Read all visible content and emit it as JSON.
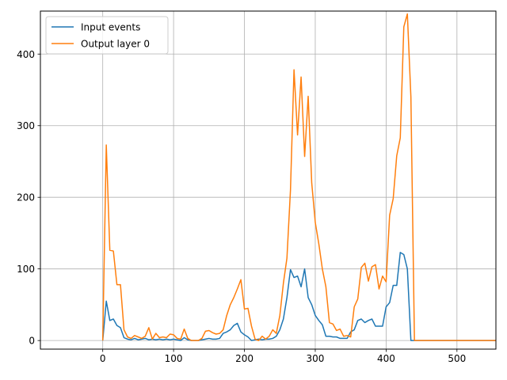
{
  "chart_data": {
    "type": "line",
    "title": "",
    "xlabel": "",
    "ylabel": "",
    "xlim": [
      -88,
      555
    ],
    "ylim": [
      -12,
      460
    ],
    "xticks": [
      0,
      100,
      200,
      300,
      400,
      500
    ],
    "yticks": [
      0,
      100,
      200,
      300,
      400
    ],
    "grid": true,
    "legend_position": "upper left",
    "series": [
      {
        "name": "Input events",
        "color": "#1f77b4",
        "x": [
          0,
          5,
          10,
          15,
          20,
          25,
          30,
          35,
          40,
          45,
          50,
          55,
          60,
          65,
          70,
          75,
          80,
          85,
          90,
          95,
          100,
          105,
          110,
          115,
          120,
          125,
          130,
          135,
          140,
          145,
          150,
          155,
          160,
          165,
          170,
          175,
          180,
          185,
          190,
          195,
          200,
          205,
          210,
          215,
          220,
          225,
          230,
          235,
          240,
          245,
          250,
          255,
          260,
          265,
          270,
          275,
          280,
          285,
          290,
          295,
          300,
          305,
          310,
          315,
          320,
          325,
          330,
          335,
          340,
          345,
          350,
          355,
          360,
          365,
          370,
          375,
          380,
          385,
          390,
          395,
          400,
          405,
          410,
          415,
          420,
          425,
          430,
          435,
          440,
          445,
          450,
          455,
          460,
          465,
          470,
          475,
          480,
          485,
          490,
          495,
          500,
          505,
          510,
          515,
          520,
          525,
          530,
          535,
          540,
          545,
          550,
          555
        ],
        "y": [
          0,
          55,
          28,
          30,
          21,
          18,
          4,
          2,
          1,
          3,
          1,
          2,
          3,
          1,
          2,
          1,
          2,
          1,
          2,
          1,
          2,
          1,
          0,
          4,
          1,
          0,
          0,
          0,
          1,
          2,
          3,
          2,
          2,
          3,
          10,
          12,
          15,
          21,
          24,
          12,
          8,
          5,
          0,
          1,
          2,
          1,
          2,
          2,
          3,
          6,
          15,
          30,
          60,
          99,
          88,
          90,
          75,
          100,
          60,
          50,
          35,
          28,
          22,
          6,
          6,
          5,
          5,
          3,
          3,
          3,
          12,
          15,
          28,
          30,
          25,
          28,
          30,
          20,
          20,
          20,
          47,
          53,
          77,
          77,
          123,
          120,
          100,
          0,
          0,
          0,
          0,
          0,
          0,
          0,
          0,
          0,
          0,
          0,
          0,
          0,
          0,
          0,
          0,
          0,
          0,
          0,
          0,
          0,
          0,
          0,
          0,
          0
        ]
      },
      {
        "name": "Output layer 0",
        "color": "#ff7f0e",
        "x": [
          0,
          5,
          10,
          15,
          20,
          25,
          30,
          35,
          40,
          45,
          50,
          55,
          60,
          65,
          70,
          75,
          80,
          85,
          90,
          95,
          100,
          105,
          110,
          115,
          120,
          125,
          130,
          135,
          140,
          145,
          150,
          155,
          160,
          165,
          170,
          175,
          180,
          185,
          190,
          195,
          200,
          205,
          210,
          215,
          220,
          225,
          230,
          235,
          240,
          245,
          250,
          255,
          260,
          265,
          270,
          275,
          280,
          285,
          290,
          295,
          300,
          305,
          310,
          315,
          320,
          325,
          330,
          335,
          340,
          345,
          350,
          355,
          360,
          365,
          370,
          375,
          380,
          385,
          390,
          395,
          400,
          405,
          410,
          415,
          420,
          425,
          430,
          435,
          440,
          445,
          450,
          455,
          460,
          465,
          470,
          475,
          480,
          485,
          490,
          495,
          500,
          505,
          510,
          515,
          520,
          525,
          530,
          535,
          540,
          545,
          550,
          555
        ],
        "y": [
          0,
          273,
          126,
          125,
          78,
          78,
          15,
          5,
          3,
          7,
          5,
          3,
          6,
          18,
          2,
          10,
          4,
          5,
          4,
          9,
          8,
          3,
          2,
          16,
          3,
          0,
          0,
          0,
          3,
          13,
          14,
          11,
          9,
          10,
          15,
          35,
          50,
          60,
          72,
          85,
          44,
          45,
          20,
          2,
          0,
          6,
          2,
          6,
          15,
          10,
          35,
          80,
          115,
          210,
          378,
          287,
          368,
          257,
          341,
          220,
          165,
          135,
          100,
          75,
          25,
          23,
          14,
          16,
          6,
          7,
          5,
          47,
          58,
          102,
          108,
          83,
          103,
          106,
          72,
          90,
          82,
          175,
          198,
          258,
          283,
          438,
          456,
          340,
          0,
          0,
          0,
          0,
          0,
          0,
          0,
          0,
          0,
          0,
          0,
          0,
          0,
          0,
          0,
          0,
          0,
          0,
          0,
          0,
          0,
          0,
          0,
          0
        ]
      }
    ]
  }
}
